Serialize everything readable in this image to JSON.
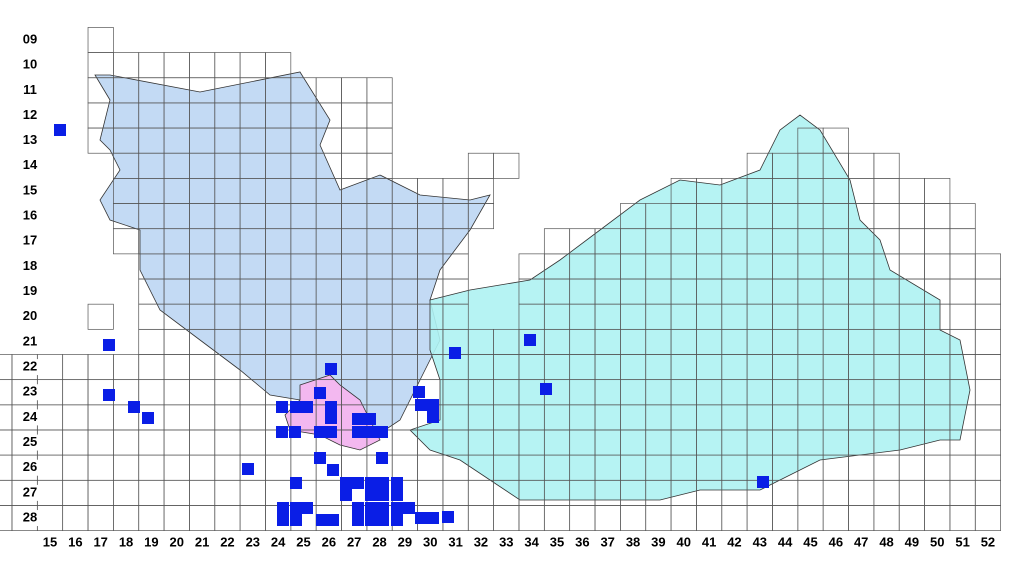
{
  "map": {
    "row_labels": [
      "09",
      "10",
      "11",
      "12",
      "13",
      "14",
      "15",
      "16",
      "17",
      "18",
      "19",
      "20",
      "21",
      "22",
      "23",
      "24",
      "25",
      "26",
      "27",
      "28"
    ],
    "column_labels": [
      "15",
      "16",
      "17",
      "18",
      "19",
      "20",
      "21",
      "22",
      "23",
      "24",
      "25",
      "26",
      "27",
      "28",
      "29",
      "30",
      "31",
      "32",
      "33",
      "34",
      "35",
      "36",
      "37",
      "38",
      "39",
      "40",
      "41",
      "42",
      "43",
      "44",
      "45",
      "46",
      "47",
      "48",
      "49",
      "50",
      "51",
      "52"
    ]
  }
}
